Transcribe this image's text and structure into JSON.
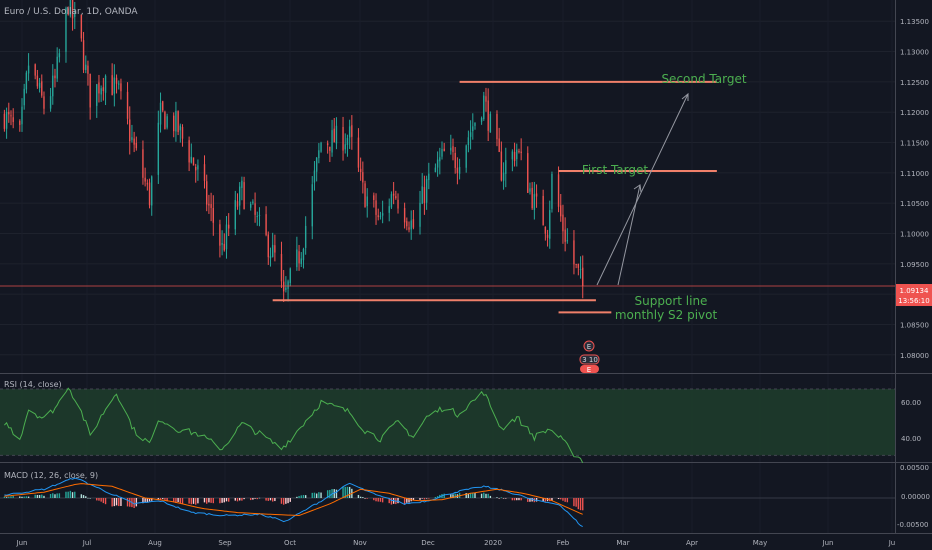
{
  "symbol": {
    "title": "Euro / U.S. Dollar, 1D, OANDA"
  },
  "price_axis": {
    "ticks": [
      "1.13500",
      "1.13000",
      "1.12500",
      "1.12000",
      "1.11500",
      "1.11000",
      "1.10500",
      "1.10000",
      "1.09500",
      "1.09000",
      "1.08500",
      "1.08000"
    ],
    "current_price": "1.09134",
    "countdown": "13:56:10"
  },
  "time_axis": {
    "labels": [
      "Jun",
      "Jul",
      "Aug",
      "Sep",
      "Oct",
      "Nov",
      "Dec",
      "2020",
      "Feb",
      "Mar",
      "Apr",
      "May",
      "Jun",
      "Ju"
    ]
  },
  "annotations": {
    "second_target": "Second Target",
    "first_target": "First Target",
    "support_line": "Support line",
    "monthly_s2": "monthly S2 pivot"
  },
  "event_markers": {
    "top": "E",
    "middle": "3 10",
    "bottom": "E"
  },
  "rsi": {
    "title": "RSI (14, close)",
    "ticks": [
      "60.00",
      "40.00"
    ],
    "band": [
      30,
      70
    ]
  },
  "macd": {
    "title": "MACD (12, 26, close, 9)",
    "ticks": [
      "0.00500",
      "0.00000",
      "-0.00500"
    ]
  },
  "colors": {
    "background": "#131722",
    "up": "#26a69a",
    "down": "#ef5350",
    "level_line": "#f0806a",
    "annotation_text": "#4caf50",
    "arrow": "#9598a1",
    "rsi_line": "#4caf50",
    "rsi_band": "#1e3b2b",
    "price_tag": "#ef5350"
  },
  "chart_data": {
    "type": "candlestick",
    "title": "Euro / U.S. Dollar, 1D, OANDA",
    "x_range": [
      "2019-05-25",
      "2020-07-05"
    ],
    "y_range": [
      1.077,
      1.1385
    ],
    "levels": [
      {
        "label": "Second Target",
        "price": 1.125,
        "from": "2019-12-20",
        "to": "2020-04-15"
      },
      {
        "label": "First Target",
        "price": 1.1103,
        "from": "2020-02-03",
        "to": "2020-04-15"
      },
      {
        "label": "Support line",
        "price": 1.089,
        "from": "2019-09-26",
        "to": "2020-02-20"
      },
      {
        "label": "monthly S2 pivot",
        "price": 1.087,
        "from": "2020-02-03",
        "to": "2020-02-27"
      }
    ],
    "last_price": 1.09134,
    "close_anchors": [
      [
        "2019-05-27",
        1.1195
      ],
      [
        "2019-06-03",
        1.116
      ],
      [
        "2019-06-07",
        1.128
      ],
      [
        "2019-06-14",
        1.121
      ],
      [
        "2019-06-19",
        1.125
      ],
      [
        "2019-06-25",
        1.138
      ],
      [
        "2019-07-01",
        1.131
      ],
      [
        "2019-07-05",
        1.1225
      ],
      [
        "2019-07-12",
        1.126
      ],
      [
        "2019-07-18",
        1.123
      ],
      [
        "2019-07-25",
        1.114
      ],
      [
        "2019-08-01",
        1.106
      ],
      [
        "2019-08-06",
        1.1195
      ],
      [
        "2019-08-13",
        1.118
      ],
      [
        "2019-08-23",
        1.11
      ],
      [
        "2019-09-03",
        1.0975
      ],
      [
        "2019-09-12",
        1.107
      ],
      [
        "2019-09-20",
        1.101
      ],
      [
        "2019-09-27",
        1.096
      ],
      [
        "2019-10-01",
        1.089
      ],
      [
        "2019-10-09",
        1.0975
      ],
      [
        "2019-10-18",
        1.115
      ],
      [
        "2019-10-31",
        1.116
      ],
      [
        "2019-11-06",
        1.107
      ],
      [
        "2019-11-14",
        1.102
      ],
      [
        "2019-11-20",
        1.107
      ],
      [
        "2019-11-29",
        1.101
      ],
      [
        "2019-12-05",
        1.108
      ],
      [
        "2019-12-13",
        1.113
      ],
      [
        "2019-12-19",
        1.112
      ],
      [
        "2019-12-31",
        1.122
      ],
      [
        "2020-01-08",
        1.1105
      ],
      [
        "2020-01-15",
        1.114
      ],
      [
        "2020-01-23",
        1.105
      ],
      [
        "2020-01-29",
        1.101
      ],
      [
        "2020-01-31",
        1.109
      ],
      [
        "2020-02-05",
        1.101
      ],
      [
        "2020-02-10",
        1.095
      ],
      [
        "2020-02-14",
        1.0913
      ]
    ],
    "rsi": {
      "range": [
        26,
        79
      ],
      "anchors": [
        [
          "2019-05-27",
          50
        ],
        [
          "2019-06-03",
          40
        ],
        [
          "2019-06-07",
          58
        ],
        [
          "2019-06-14",
          52
        ],
        [
          "2019-06-20",
          60
        ],
        [
          "2019-06-25",
          72
        ],
        [
          "2019-07-01",
          56
        ],
        [
          "2019-07-05",
          42
        ],
        [
          "2019-07-12",
          58
        ],
        [
          "2019-07-17",
          68
        ],
        [
          "2019-07-25",
          45
        ],
        [
          "2019-08-01",
          37
        ],
        [
          "2019-08-06",
          52
        ],
        [
          "2019-08-13",
          46
        ],
        [
          "2019-08-23",
          43
        ],
        [
          "2019-09-03",
          34
        ],
        [
          "2019-09-12",
          49
        ],
        [
          "2019-09-20",
          43
        ],
        [
          "2019-09-30",
          34
        ],
        [
          "2019-10-08",
          46
        ],
        [
          "2019-10-18",
          62
        ],
        [
          "2019-10-31",
          56
        ],
        [
          "2019-11-07",
          45
        ],
        [
          "2019-11-14",
          40
        ],
        [
          "2019-11-22",
          50
        ],
        [
          "2019-11-29",
          41
        ],
        [
          "2019-12-05",
          53
        ],
        [
          "2019-12-13",
          59
        ],
        [
          "2019-12-19",
          55
        ],
        [
          "2019-12-31",
          68
        ],
        [
          "2020-01-08",
          46
        ],
        [
          "2020-01-15",
          53
        ],
        [
          "2020-01-23",
          41
        ],
        [
          "2020-01-30",
          46
        ],
        [
          "2020-02-04",
          40
        ],
        [
          "2020-02-10",
          31
        ],
        [
          "2020-02-14",
          27
        ]
      ]
    },
    "macd": {
      "range": [
        -0.006,
        0.006
      ],
      "macd_anchors": [
        [
          "2019-05-27",
          0.0005
        ],
        [
          "2019-06-14",
          0.0015
        ],
        [
          "2019-06-28",
          0.0035
        ],
        [
          "2019-07-10",
          0.0015
        ],
        [
          "2019-07-25",
          -0.001
        ],
        [
          "2019-08-06",
          -0.0005
        ],
        [
          "2019-08-20",
          -0.0025
        ],
        [
          "2019-09-05",
          -0.003
        ],
        [
          "2019-09-20",
          -0.0028
        ],
        [
          "2019-10-02",
          -0.004
        ],
        [
          "2019-10-18",
          -0.0005
        ],
        [
          "2019-10-31",
          0.0025
        ],
        [
          "2019-11-12",
          0.0005
        ],
        [
          "2019-11-25",
          -0.001
        ],
        [
          "2019-12-05",
          -0.0005
        ],
        [
          "2019-12-18",
          0.001
        ],
        [
          "2019-12-31",
          0.002
        ],
        [
          "2020-01-10",
          0.0012
        ],
        [
          "2020-01-24",
          -0.0005
        ],
        [
          "2020-02-03",
          -0.001
        ],
        [
          "2020-02-14",
          -0.005
        ]
      ],
      "signal_anchors": [
        [
          "2019-05-27",
          0.0003
        ],
        [
          "2019-06-14",
          0.001
        ],
        [
          "2019-06-30",
          0.0025
        ],
        [
          "2019-07-15",
          0.002
        ],
        [
          "2019-07-30",
          0.0
        ],
        [
          "2019-08-10",
          -0.0005
        ],
        [
          "2019-08-25",
          -0.0018
        ],
        [
          "2019-09-10",
          -0.0025
        ],
        [
          "2019-09-25",
          -0.0028
        ],
        [
          "2019-10-08",
          -0.003
        ],
        [
          "2019-10-22",
          -0.001
        ],
        [
          "2019-11-05",
          0.0015
        ],
        [
          "2019-11-18",
          0.0008
        ],
        [
          "2019-11-30",
          -0.0005
        ],
        [
          "2019-12-12",
          -0.0003
        ],
        [
          "2019-12-25",
          0.0008
        ],
        [
          "2020-01-06",
          0.0015
        ],
        [
          "2020-01-18",
          0.0008
        ],
        [
          "2020-01-30",
          -0.0003
        ],
        [
          "2020-02-14",
          -0.0028
        ]
      ]
    }
  }
}
